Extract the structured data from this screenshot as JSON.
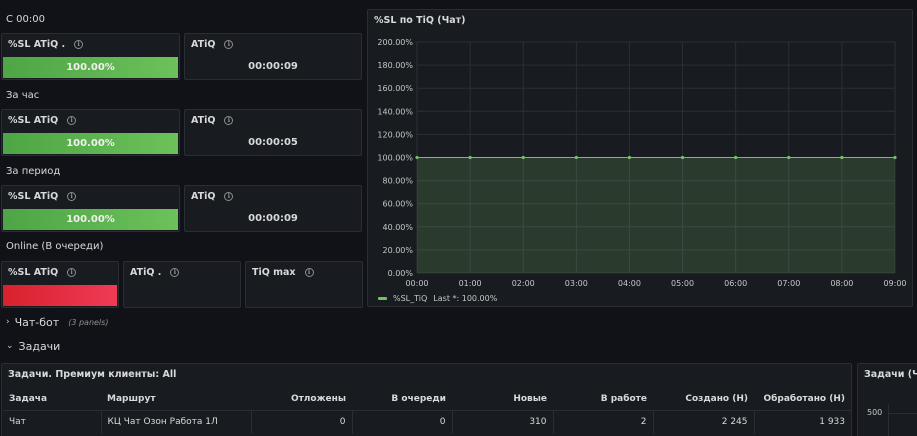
{
  "colors": {
    "green": "#73bf69",
    "red": "#e02f44",
    "bg": "#111217",
    "panel": "#181b1f"
  },
  "sections": {
    "since_midnight": "С 00:00",
    "last_hour": "За час",
    "period": "За период",
    "online": "Online (В очереди)"
  },
  "panels": {
    "sl_atiq_1": {
      "title": "%SL ATiQ .",
      "value": "100.00%",
      "level": 1.0
    },
    "atiq_1": {
      "title": "ATiQ",
      "value": "00:00:09"
    },
    "sl_atiq_2": {
      "title": "%SL ATiQ",
      "value": "100.00%",
      "level": 1.0
    },
    "atiq_2": {
      "title": "ATiQ",
      "value": "00:00:05"
    },
    "sl_atiq_3": {
      "title": "%SL ATiQ",
      "value": "100.00%",
      "level": 1.0
    },
    "atiq_3": {
      "title": "ATiQ",
      "value": "00:00:09"
    },
    "sl_atiq_4": {
      "title": "%SL ATiQ",
      "level": 1.0
    },
    "atiq_4": {
      "title": "ATiQ ."
    },
    "tiq_max": {
      "title": "TiQ max"
    }
  },
  "chart_panel": {
    "title": "%SL по TiQ (Чат)"
  },
  "chart_data": {
    "type": "area",
    "x": [
      "00:00",
      "01:00",
      "02:00",
      "03:00",
      "04:00",
      "05:00",
      "06:00",
      "07:00",
      "08:00",
      "09:00"
    ],
    "series": [
      {
        "name": "%SL_TiQ",
        "values": [
          100,
          100,
          100,
          100,
          100,
          100,
          100,
          100,
          100,
          100
        ]
      }
    ],
    "yticks": [
      "0.00%",
      "20.00%",
      "40.00%",
      "60.00%",
      "80.00%",
      "100.00%",
      "120.00%",
      "140.00%",
      "160.00%",
      "180.00%",
      "200.00%"
    ],
    "ylim": [
      0,
      200
    ],
    "grid": true,
    "legend": {
      "name": "%SL_TiQ",
      "stat": "Last *: 100.00%"
    }
  },
  "rows": {
    "chatbot": {
      "label": "Чат-бот",
      "sub": "(3 panels)"
    },
    "tasks": {
      "label": "Задачи"
    }
  },
  "tasks_table": {
    "title": "Задачи. Премиум клиенты: All",
    "columns": [
      "Задача",
      "Маршрут",
      "Отложены",
      "В очереди",
      "Новые",
      "В работе",
      "Создано (Н)",
      "Обработано (Н)"
    ],
    "rows": [
      [
        "Чат",
        "КЦ Чат Озон Работа 1Л",
        "0",
        "0",
        "310",
        "2",
        "2 245",
        "1 933"
      ]
    ]
  },
  "side_panel": {
    "title": "Задачи (Чат",
    "ytick": "500"
  }
}
